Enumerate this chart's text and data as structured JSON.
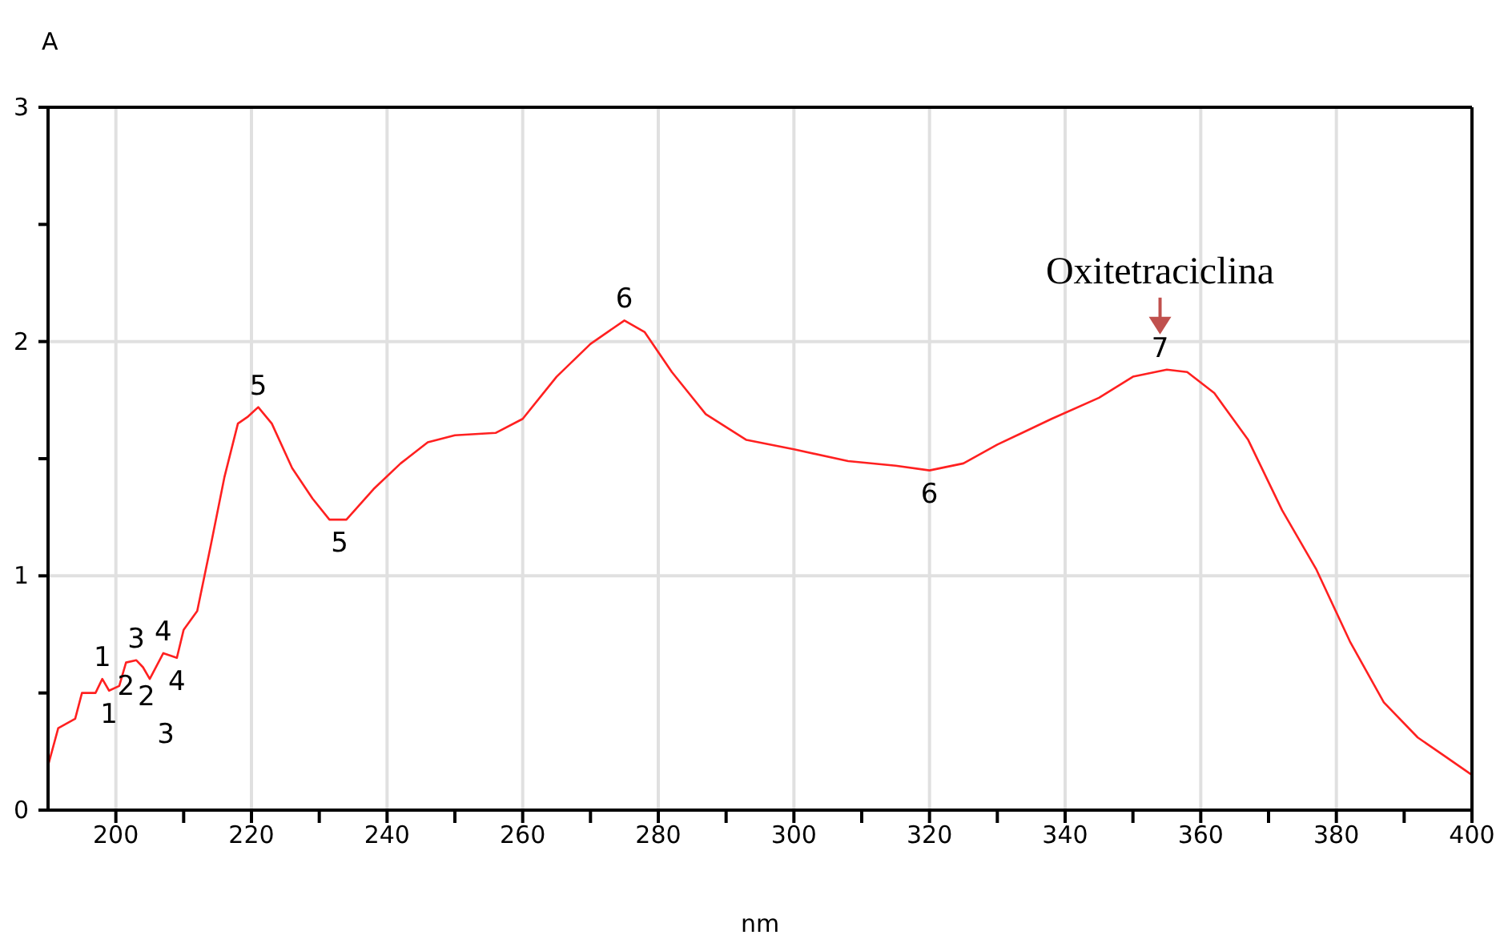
{
  "chart_data": {
    "type": "line",
    "xlabel": "nm",
    "ylabel": "A",
    "x": [
      190,
      191.5,
      194,
      195,
      197,
      198,
      199,
      200.5,
      201.5,
      203,
      204,
      205,
      207,
      209,
      210,
      212,
      214,
      216,
      218,
      219.5,
      221,
      223,
      226,
      229,
      231.5,
      234,
      238,
      242,
      246,
      250,
      256,
      260,
      265,
      270,
      275,
      278,
      282,
      287,
      293,
      300,
      308,
      315,
      320,
      325,
      330,
      338,
      345,
      350,
      355,
      358,
      362,
      367,
      372,
      377,
      382,
      387,
      392,
      396,
      400
    ],
    "series": [
      {
        "color": "#ff2020",
        "values": [
          0.19,
          0.35,
          0.39,
          0.5,
          0.5,
          0.56,
          0.51,
          0.53,
          0.63,
          0.64,
          0.61,
          0.56,
          0.67,
          0.65,
          0.77,
          0.85,
          1.13,
          1.42,
          1.65,
          1.68,
          1.72,
          1.65,
          1.46,
          1.33,
          1.24,
          1.24,
          1.37,
          1.48,
          1.57,
          1.6,
          1.61,
          1.67,
          1.85,
          1.99,
          2.09,
          2.04,
          1.87,
          1.69,
          1.58,
          1.54,
          1.49,
          1.47,
          1.45,
          1.48,
          1.56,
          1.67,
          1.76,
          1.85,
          1.88,
          1.87,
          1.78,
          1.58,
          1.28,
          1.03,
          0.72,
          0.46,
          0.31,
          0.23,
          0.15
        ]
      }
    ],
    "xlim": [
      190,
      400
    ],
    "xticks": [
      200,
      {
        "value": 210,
        "label": null
      },
      220,
      {
        "value": 230,
        "label": null
      },
      240,
      {
        "value": 250,
        "label": null
      },
      260,
      {
        "value": 270,
        "label": null
      },
      280,
      {
        "value": 290,
        "label": null
      },
      300,
      {
        "value": 310,
        "label": null
      },
      320,
      {
        "value": 330,
        "label": null
      },
      340,
      {
        "value": 350,
        "label": null
      },
      360,
      {
        "value": 370,
        "label": null
      },
      380,
      {
        "value": 390,
        "label": null
      },
      400
    ],
    "ylim": [
      0,
      3
    ],
    "yticks": [
      0,
      {
        "value": 0.5,
        "label": null
      },
      1,
      {
        "value": 1.5,
        "label": null
      },
      2,
      {
        "value": 2.5,
        "label": null
      },
      3
    ],
    "grid": true,
    "legend": false,
    "marker": "none",
    "line_style": "solid",
    "annotations": [
      {
        "text": "1",
        "x": 198,
        "y": 0.56
      },
      {
        "text": "1",
        "x": 199,
        "y": 0.51
      },
      {
        "text": "2",
        "x": 201.5,
        "y": 0.63
      },
      {
        "text": "3",
        "x": 203,
        "y": 0.64
      },
      {
        "text": "2",
        "x": 204.5,
        "y": 0.585
      },
      {
        "text": "3",
        "x": 205,
        "y": 0.56
      },
      {
        "text": "4",
        "x": 207,
        "y": 0.67
      },
      {
        "text": "4",
        "x": 209,
        "y": 0.65
      },
      {
        "text": "5",
        "x": 221,
        "y": 1.72
      },
      {
        "text": "5",
        "x": 233,
        "y": 1.24
      },
      {
        "text": "6",
        "x": 275,
        "y": 2.09
      },
      {
        "text": "6",
        "x": 320,
        "y": 1.45
      },
      {
        "text": "7",
        "x": 354,
        "y": 1.88
      },
      {
        "text": "Oxitetraciclina",
        "x": 354,
        "y": 1.88
      }
    ]
  }
}
